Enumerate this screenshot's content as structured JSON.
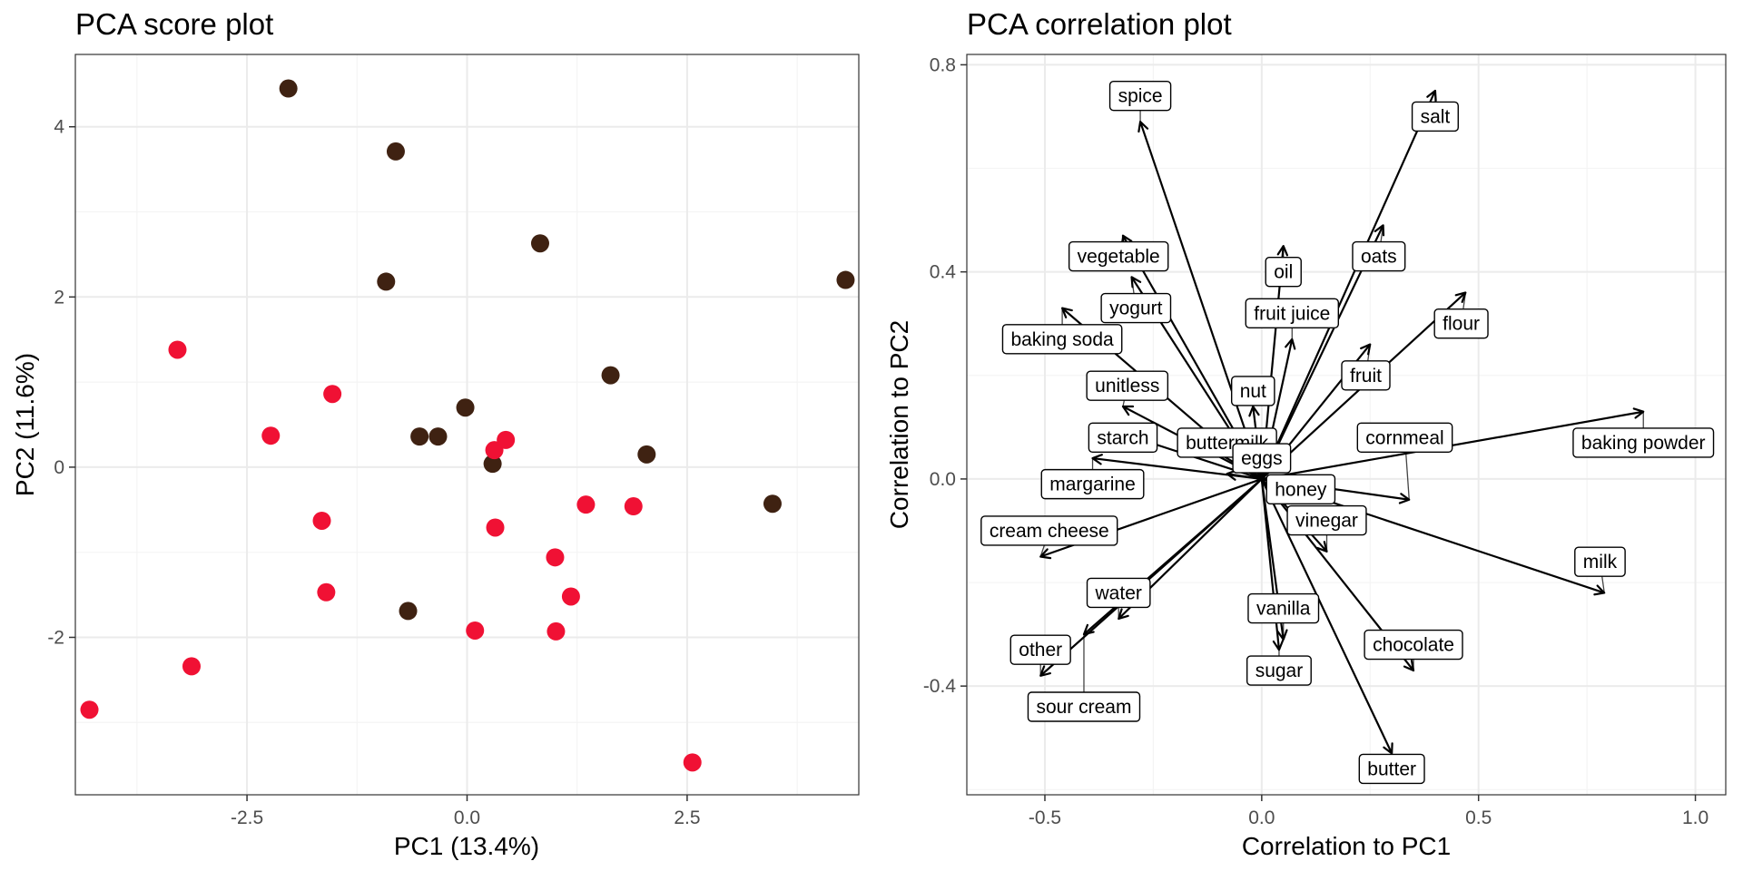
{
  "colors": {
    "group_a": "#3f2212",
    "group_b": "#f01134",
    "grid_major": "#ebebeb",
    "grid_minor": "#f4f4f4",
    "panel_border": "#333333",
    "tick_label": "#4d4d4d"
  },
  "chart_data": [
    {
      "type": "scatter",
      "title": "PCA score plot",
      "xlabel": "PC1 (13.4%)",
      "ylabel": "PC2 (11.6%)",
      "xlim": [
        -4.45,
        4.45
      ],
      "ylim": [
        -3.85,
        4.85
      ],
      "x_ticks": [
        -2.5,
        0.0,
        2.5
      ],
      "x_tick_labels": [
        "-2.5",
        "0.0",
        "2.5"
      ],
      "y_ticks": [
        -2,
        0,
        2,
        4
      ],
      "y_tick_labels": [
        "-2",
        "0",
        "2",
        "4"
      ],
      "grid": true,
      "legend": "none",
      "series": [
        {
          "color": "#3f2212",
          "points": [
            [
              -2.03,
              4.45
            ],
            [
              -0.81,
              3.71
            ],
            [
              0.83,
              2.63
            ],
            [
              -0.92,
              2.18
            ],
            [
              4.3,
              2.2
            ],
            [
              1.63,
              1.08
            ],
            [
              -0.02,
              0.7
            ],
            [
              -0.54,
              0.36
            ],
            [
              -0.33,
              0.36
            ],
            [
              0.29,
              0.04
            ],
            [
              2.04,
              0.15
            ],
            [
              3.47,
              -0.43
            ],
            [
              -0.67,
              -1.69
            ]
          ]
        },
        {
          "color": "#f01134",
          "points": [
            [
              -3.29,
              1.38
            ],
            [
              -1.53,
              0.86
            ],
            [
              -2.23,
              0.37
            ],
            [
              0.31,
              0.2
            ],
            [
              0.44,
              0.32
            ],
            [
              -1.65,
              -0.63
            ],
            [
              1.35,
              -0.44
            ],
            [
              1.89,
              -0.46
            ],
            [
              0.32,
              -0.71
            ],
            [
              1.0,
              -1.06
            ],
            [
              -1.6,
              -1.47
            ],
            [
              1.18,
              -1.52
            ],
            [
              0.09,
              -1.92
            ],
            [
              1.01,
              -1.93
            ],
            [
              -3.13,
              -2.34
            ],
            [
              -4.29,
              -2.85
            ],
            [
              2.56,
              -3.47
            ]
          ]
        }
      ]
    },
    {
      "type": "biplot",
      "title": "PCA correlation plot",
      "xlabel": "Correlation to PC1",
      "ylabel": "Correlation to PC2",
      "xlim": [
        -0.68,
        1.07
      ],
      "ylim": [
        -0.61,
        0.82
      ],
      "x_ticks": [
        -0.5,
        0.0,
        0.5,
        1.0
      ],
      "x_tick_labels": [
        "-0.5",
        "0.0",
        "0.5",
        "1.0"
      ],
      "y_ticks": [
        -0.4,
        0.0,
        0.4,
        0.8
      ],
      "y_tick_labels": [
        "-0.4",
        "0.0",
        "0.4",
        "0.8"
      ],
      "grid": true,
      "vectors": [
        {
          "label": "spice",
          "x": -0.28,
          "y": 0.69,
          "label_x": -0.28,
          "label_y": 0.74
        },
        {
          "label": "salt",
          "x": 0.4,
          "y": 0.75,
          "label_x": 0.4,
          "label_y": 0.7
        },
        {
          "label": "vegetable",
          "x": -0.32,
          "y": 0.47,
          "label_x": -0.33,
          "label_y": 0.43
        },
        {
          "label": "oats",
          "x": 0.28,
          "y": 0.49,
          "label_x": 0.27,
          "label_y": 0.43
        },
        {
          "label": "oil",
          "x": 0.05,
          "y": 0.45,
          "label_x": 0.05,
          "label_y": 0.4
        },
        {
          "label": "yogurt",
          "x": -0.3,
          "y": 0.39,
          "label_x": -0.29,
          "label_y": 0.33
        },
        {
          "label": "fruit juice",
          "x": 0.07,
          "y": 0.27,
          "label_x": 0.07,
          "label_y": 0.32
        },
        {
          "label": "baking soda",
          "x": -0.46,
          "y": 0.33,
          "label_x": -0.46,
          "label_y": 0.27
        },
        {
          "label": "flour",
          "x": 0.47,
          "y": 0.36,
          "label_x": 0.46,
          "label_y": 0.3
        },
        {
          "label": "fruit",
          "x": 0.25,
          "y": 0.26,
          "label_x": 0.24,
          "label_y": 0.2
        },
        {
          "label": "unitless",
          "x": -0.32,
          "y": 0.14,
          "label_x": -0.31,
          "label_y": 0.18
        },
        {
          "label": "nut",
          "x": -0.02,
          "y": 0.14,
          "label_x": -0.02,
          "label_y": 0.17
        },
        {
          "label": "starch",
          "x": -0.33,
          "y": 0.09,
          "label_x": -0.32,
          "label_y": 0.08
        },
        {
          "label": "buttermilk",
          "x": -0.12,
          "y": 0.06,
          "label_x": -0.08,
          "label_y": 0.07
        },
        {
          "label": "cornmeal",
          "x": 0.34,
          "y": -0.04,
          "label_x": 0.33,
          "label_y": 0.08
        },
        {
          "label": "baking powder",
          "x": 0.88,
          "y": 0.13,
          "label_x": 0.88,
          "label_y": 0.07
        },
        {
          "label": "eggs",
          "x": -0.08,
          "y": 0.01,
          "label_x": 0.0,
          "label_y": 0.04
        },
        {
          "label": "margarine",
          "x": -0.39,
          "y": 0.04,
          "label_x": -0.39,
          "label_y": -0.01
        },
        {
          "label": "honey",
          "x": 0.1,
          "y": -0.02,
          "label_x": 0.09,
          "label_y": -0.02
        },
        {
          "label": "vinegar",
          "x": 0.15,
          "y": -0.14,
          "label_x": 0.15,
          "label_y": -0.08
        },
        {
          "label": "cream cheese",
          "x": -0.51,
          "y": -0.15,
          "label_x": -0.49,
          "label_y": -0.1
        },
        {
          "label": "milk",
          "x": 0.79,
          "y": -0.22,
          "label_x": 0.78,
          "label_y": -0.16
        },
        {
          "label": "water",
          "x": -0.33,
          "y": -0.27,
          "label_x": -0.33,
          "label_y": -0.22
        },
        {
          "label": "vanilla",
          "x": 0.05,
          "y": -0.31,
          "label_x": 0.05,
          "label_y": -0.25
        },
        {
          "label": "chocolate",
          "x": 0.35,
          "y": -0.37,
          "label_x": 0.35,
          "label_y": -0.32
        },
        {
          "label": "sugar",
          "x": 0.04,
          "y": -0.33,
          "label_x": 0.04,
          "label_y": -0.37
        },
        {
          "label": "other",
          "x": -0.51,
          "y": -0.38,
          "label_x": -0.51,
          "label_y": -0.33
        },
        {
          "label": "sour cream",
          "x": -0.41,
          "y": -0.3,
          "label_x": -0.41,
          "label_y": -0.44
        },
        {
          "label": "butter",
          "x": 0.3,
          "y": -0.53,
          "label_x": 0.3,
          "label_y": -0.56
        }
      ]
    }
  ]
}
